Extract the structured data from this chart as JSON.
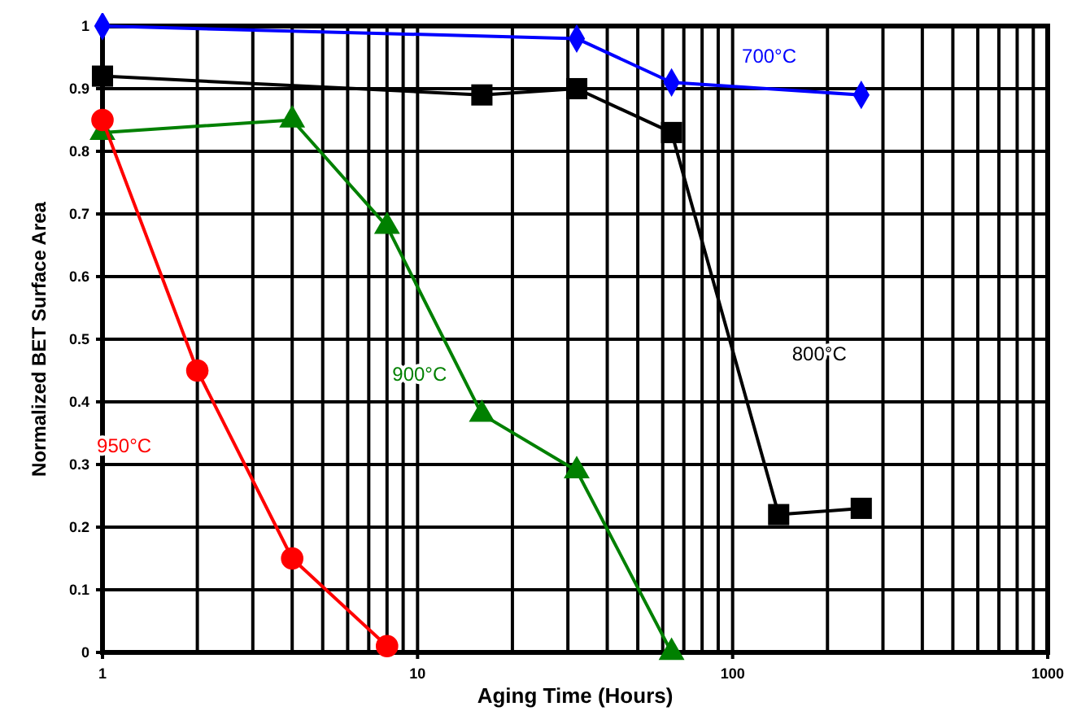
{
  "chart_data": {
    "type": "line",
    "xlabel": "Aging Time (Hours)",
    "ylabel": "Normalized BET Surface Area",
    "log": "x",
    "grid": true,
    "line_style": "solid",
    "xlim": [
      1,
      1000
    ],
    "xticks": [
      1,
      10,
      100,
      1000
    ],
    "ylim": [
      0,
      1
    ],
    "yticks": [
      0,
      0.1,
      0.2,
      0.3,
      0.4,
      0.5,
      0.6,
      0.7,
      0.8,
      0.9,
      1
    ],
    "series": [
      {
        "name": "700°C",
        "color": "#0000ff",
        "marker": "diamond",
        "x": [
          1,
          32,
          64,
          256
        ],
        "values": [
          1.0,
          0.98,
          0.91,
          0.89
        ]
      },
      {
        "name": "800°C",
        "color": "#000000",
        "marker": "square",
        "x": [
          1,
          16,
          32,
          64,
          140,
          256
        ],
        "values": [
          0.92,
          0.89,
          0.9,
          0.83,
          0.22,
          0.23
        ]
      },
      {
        "name": "900°C",
        "color": "#008000",
        "marker": "triangle",
        "x": [
          1,
          4,
          8,
          16,
          32,
          64
        ],
        "values": [
          0.83,
          0.85,
          0.68,
          0.38,
          0.29,
          0
        ]
      },
      {
        "name": "950°C",
        "color": "#ff0000",
        "marker": "circle",
        "x": [
          1,
          2,
          4,
          8
        ],
        "values": [
          0.85,
          0.45,
          0.15,
          0.01
        ]
      }
    ]
  }
}
